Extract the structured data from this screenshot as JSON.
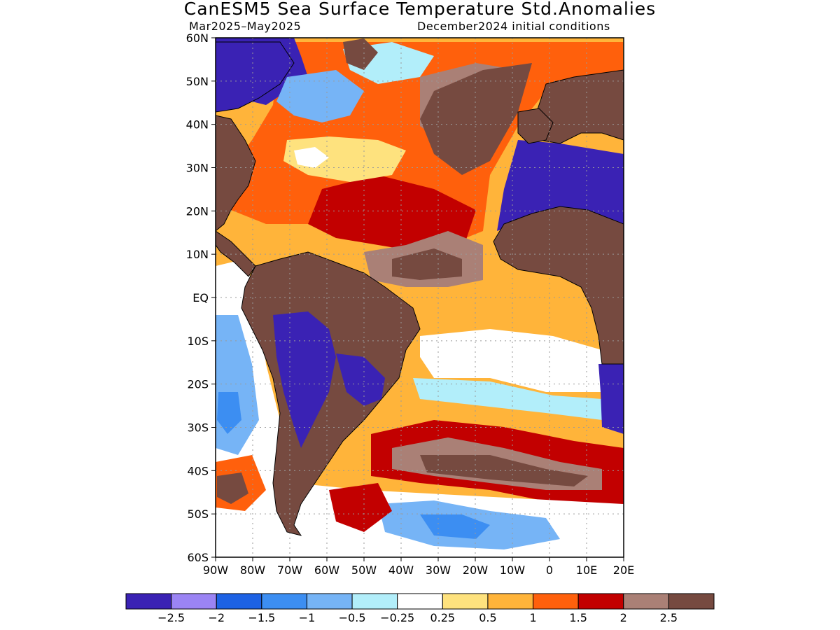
{
  "header": {
    "title": "CanESM5 Sea Surface Temperature Std.Anomalies",
    "period": "Mar2025–May2025",
    "init": "December2024 initial conditions"
  },
  "map": {
    "lon_range": [
      -90,
      20
    ],
    "lat_range": [
      -60,
      60
    ],
    "lat_ticks": [
      {
        "v": 60,
        "label": "60N"
      },
      {
        "v": 50,
        "label": "50N"
      },
      {
        "v": 40,
        "label": "40N"
      },
      {
        "v": 30,
        "label": "30N"
      },
      {
        "v": 20,
        "label": "20N"
      },
      {
        "v": 10,
        "label": "10N"
      },
      {
        "v": 0,
        "label": "EQ"
      },
      {
        "v": -10,
        "label": "10S"
      },
      {
        "v": -20,
        "label": "20S"
      },
      {
        "v": -30,
        "label": "30S"
      },
      {
        "v": -40,
        "label": "40S"
      },
      {
        "v": -50,
        "label": "50S"
      },
      {
        "v": -60,
        "label": "60S"
      }
    ],
    "lon_ticks": [
      {
        "v": -90,
        "label": "90W"
      },
      {
        "v": -80,
        "label": "80W"
      },
      {
        "v": -70,
        "label": "70W"
      },
      {
        "v": -60,
        "label": "60W"
      },
      {
        "v": -50,
        "label": "50W"
      },
      {
        "v": -40,
        "label": "40W"
      },
      {
        "v": -30,
        "label": "30W"
      },
      {
        "v": -20,
        "label": "20W"
      },
      {
        "v": -10,
        "label": "10W"
      },
      {
        "v": 0,
        "label": "0"
      },
      {
        "v": 10,
        "label": "10E"
      },
      {
        "v": 20,
        "label": "20E"
      }
    ]
  },
  "colorbar": {
    "colors": [
      "#3a22b4",
      "#9b84f4",
      "#1d62e4",
      "#3c8ef2",
      "#76b4f6",
      "#b2eefa",
      "#ffffff",
      "#fee27e",
      "#ffb43a",
      "#ff600c",
      "#c20000",
      "#aa8076",
      "#764a40"
    ],
    "labels": [
      "−2.5",
      "−2",
      "−1.5",
      "−1",
      "−0.5",
      "−0.25",
      "0.25",
      "0.5",
      "1",
      "1.5",
      "2",
      "2.5"
    ]
  },
  "land_color": "#764a40"
}
